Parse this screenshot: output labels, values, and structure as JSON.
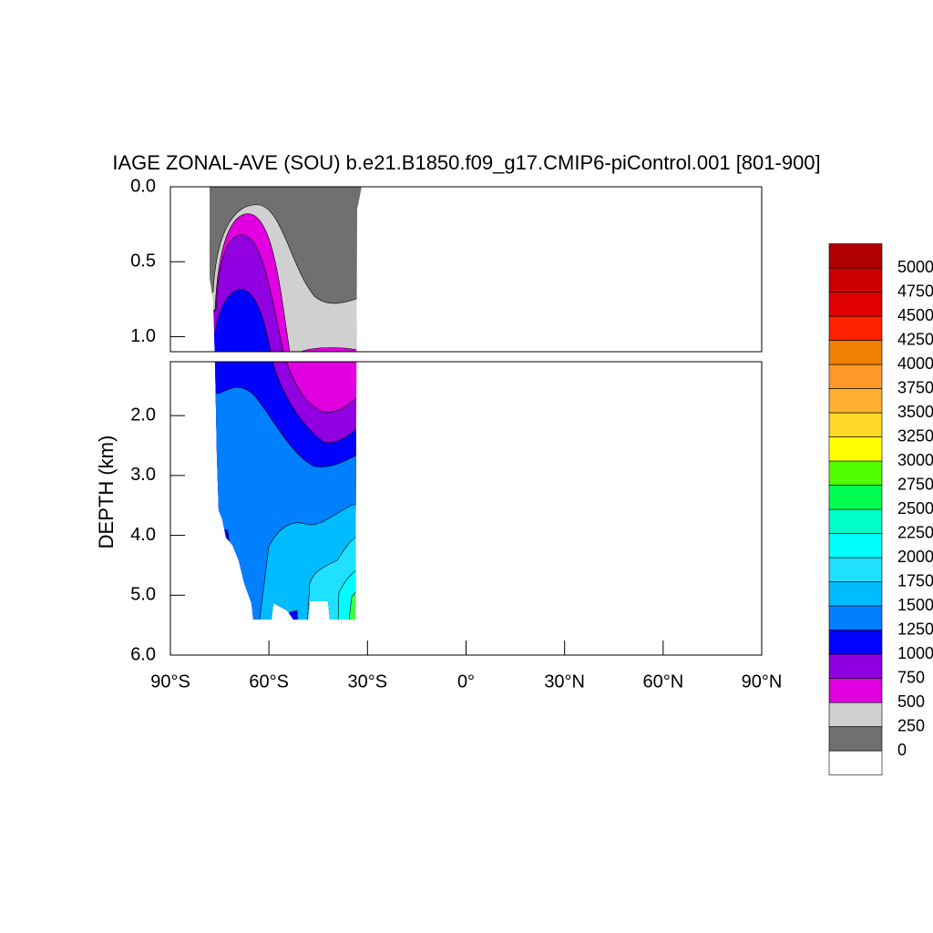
{
  "chart_data": {
    "type": "contour",
    "title": "IAGE ZONAL-AVE (SOU) b.e21.B1850.f09_g17.CMIP6-piControl.001 [801-900]",
    "ylabel": "DEPTH (km)",
    "xlim": [
      -90,
      90
    ],
    "xticks": [
      {
        "value": -90,
        "label": "90°S"
      },
      {
        "value": -60,
        "label": "60°S"
      },
      {
        "value": -30,
        "label": "30°S"
      },
      {
        "value": 0,
        "label": "0°"
      },
      {
        "value": 30,
        "label": "30°N"
      },
      {
        "value": 60,
        "label": "60°N"
      },
      {
        "value": 90,
        "label": "90°N"
      }
    ],
    "panels": [
      {
        "ylim": [
          0,
          1.1
        ],
        "yticks": [
          {
            "value": 0,
            "label": "0.0"
          },
          0.5,
          {
            "value": 1,
            "label": "1.0"
          }
        ]
      },
      {
        "ylim": [
          1.1,
          6.0
        ],
        "yticks": [
          {
            "value": 2,
            "label": "2.0"
          },
          {
            "value": 3,
            "label": "3.0"
          },
          {
            "value": 4,
            "label": "4.0"
          },
          {
            "value": 5,
            "label": "5.0"
          },
          {
            "value": 6,
            "label": "6.0"
          }
        ]
      }
    ],
    "levels": [
      0,
      250,
      500,
      750,
      1000,
      1250,
      1500,
      1750,
      2000,
      2250,
      2500,
      2750,
      3000,
      3250,
      3500,
      3750,
      4000,
      4250,
      4500,
      4750,
      5000
    ],
    "colors": [
      "#ffffff",
      "#707070",
      "#d0d0d0",
      "#e000e0",
      "#9000e0",
      "#0000ff",
      "#0080ff",
      "#00bcff",
      "#20e0ff",
      "#00ffff",
      "#00ffc8",
      "#00ff50",
      "#50ff00",
      "#ffff00",
      "#ffd828",
      "#ffb030",
      "#ff9828",
      "#f08000",
      "#ff2000",
      "#e00000",
      "#cc0000",
      "#b00000"
    ]
  }
}
